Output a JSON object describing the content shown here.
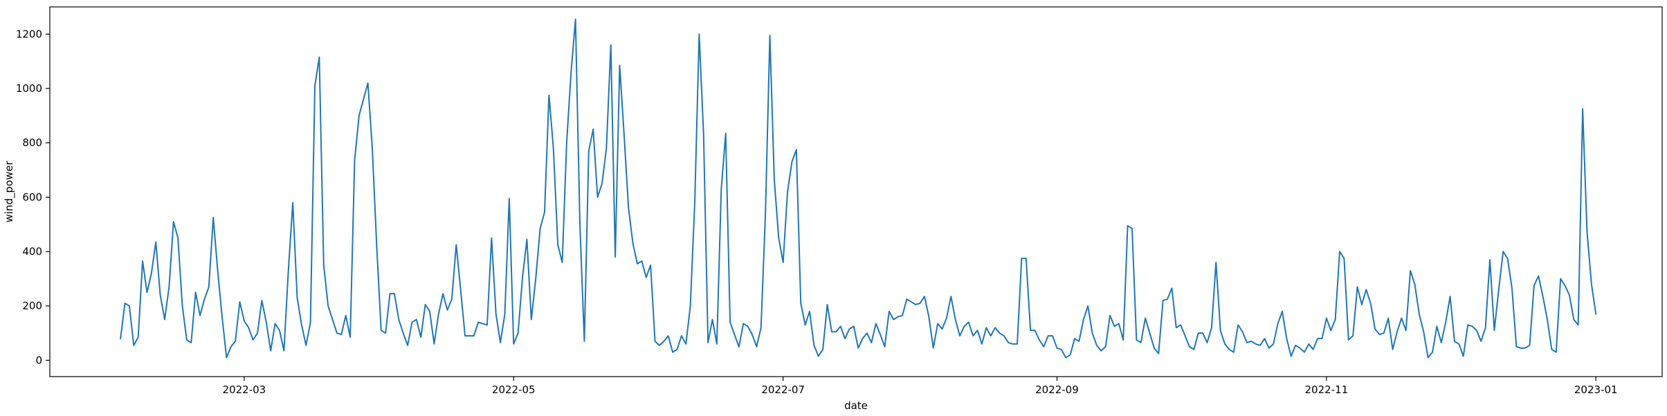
{
  "chart_data": {
    "type": "line",
    "title": "",
    "xlabel": "date",
    "ylabel": "wind_power",
    "xlim": [
      "2022-01-16",
      "2023-01-16"
    ],
    "ylim": [
      -60,
      1300
    ],
    "grid": false,
    "legend": "none",
    "x_ticks": [
      {
        "date": "2022-03-01",
        "label": "2022-03"
      },
      {
        "date": "2022-05-01",
        "label": "2022-05"
      },
      {
        "date": "2022-07-01",
        "label": "2022-07"
      },
      {
        "date": "2022-09-01",
        "label": "2022-09"
      },
      {
        "date": "2022-11-01",
        "label": "2022-11"
      },
      {
        "date": "2023-01-01",
        "label": "2023-01"
      }
    ],
    "y_ticks": [
      0,
      200,
      400,
      600,
      800,
      1000,
      1200
    ],
    "series": [
      {
        "color": "#1f77b4",
        "start_date": "2022-02-01",
        "step_days": 1,
        "values": [
          80,
          210,
          200,
          55,
          85,
          365,
          250,
          320,
          435,
          240,
          150,
          270,
          510,
          450,
          200,
          75,
          65,
          250,
          165,
          225,
          270,
          525,
          330,
          160,
          10,
          50,
          70,
          215,
          145,
          120,
          75,
          100,
          220,
          140,
          35,
          135,
          110,
          35,
          330,
          580,
          230,
          130,
          55,
          140,
          1010,
          1115,
          350,
          200,
          150,
          100,
          95,
          165,
          85,
          735,
          900,
          960,
          1020,
          780,
          420,
          110,
          100,
          245,
          245,
          150,
          100,
          55,
          140,
          150,
          85,
          205,
          180,
          60,
          170,
          245,
          185,
          225,
          425,
          260,
          90,
          90,
          90,
          140,
          135,
          130,
          450,
          170,
          65,
          170,
          595,
          60,
          100,
          305,
          445,
          150,
          300,
          485,
          545,
          975,
          780,
          425,
          360,
          800,
          1060,
          1255,
          500,
          70,
          770,
          850,
          600,
          650,
          780,
          1160,
          380,
          1085,
          830,
          560,
          430,
          355,
          365,
          305,
          350,
          70,
          55,
          70,
          90,
          30,
          40,
          90,
          60,
          200,
          580,
          1200,
          830,
          65,
          150,
          60,
          630,
          835,
          140,
          95,
          50,
          135,
          125,
          95,
          50,
          120,
          540,
          1195,
          665,
          450,
          360,
          620,
          730,
          775,
          210,
          130,
          180,
          55,
          15,
          40,
          205,
          105,
          105,
          125,
          80,
          115,
          125,
          45,
          80,
          100,
          65,
          135,
          95,
          50,
          180,
          150,
          160,
          165,
          225,
          215,
          205,
          210,
          235,
          160,
          45,
          135,
          115,
          155,
          235,
          150,
          90,
          125,
          140,
          90,
          110,
          60,
          120,
          90,
          120,
          100,
          90,
          65,
          60,
          60,
          375,
          375,
          110,
          110,
          75,
          50,
          90,
          90,
          45,
          40,
          10,
          20,
          80,
          70,
          150,
          200,
          100,
          55,
          35,
          50,
          165,
          125,
          135,
          75,
          495,
          485,
          75,
          65,
          155,
          100,
          45,
          25,
          220,
          225,
          265,
          120,
          130,
          90,
          50,
          40,
          100,
          100,
          65,
          120,
          360,
          110,
          60,
          40,
          30,
          130,
          105,
          65,
          70,
          60,
          55,
          80,
          45,
          60,
          135,
          180,
          80,
          15,
          55,
          45,
          30,
          60,
          40,
          80,
          80,
          155,
          110,
          150,
          400,
          375,
          75,
          90,
          270,
          205,
          260,
          210,
          115,
          95,
          100,
          155,
          40,
          105,
          155,
          110,
          330,
          280,
          170,
          105,
          10,
          30,
          125,
          65,
          140,
          235,
          70,
          60,
          15,
          130,
          125,
          110,
          70,
          120,
          370,
          110,
          260,
          400,
          375,
          265,
          50,
          45,
          45,
          55,
          275,
          310,
          235,
          150,
          40,
          30,
          300,
          275,
          240,
          150,
          130,
          925,
          470,
          280,
          170
        ]
      }
    ]
  }
}
